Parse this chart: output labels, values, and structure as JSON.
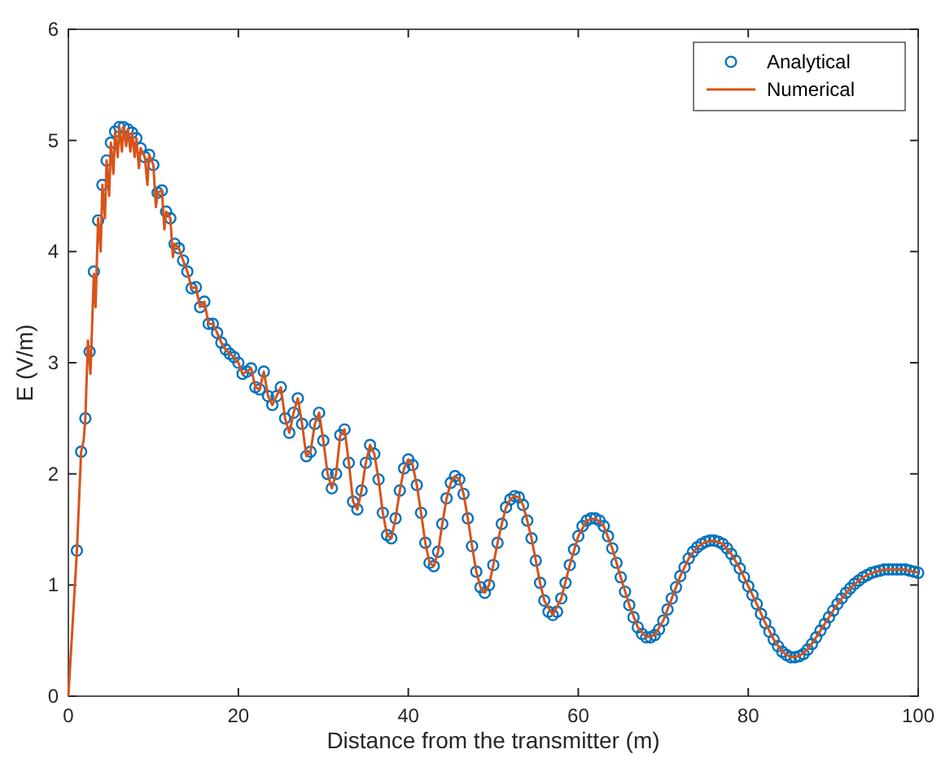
{
  "chart_data": {
    "type": "line",
    "xlabel": "Distance from the transmitter (m)",
    "ylabel": "E (V/m)",
    "xlim": [
      0,
      100
    ],
    "xticks": [
      0,
      20,
      40,
      60,
      80,
      100
    ],
    "ylim": [
      0,
      6
    ],
    "yticks": [
      0,
      1,
      2,
      3,
      4,
      5,
      6
    ],
    "legend": "top right",
    "series": [
      {
        "name": "Analytical",
        "type": "scatter",
        "marker": "circle",
        "color": "#0072bd",
        "x": [
          1,
          1.5,
          2,
          2.5,
          3,
          3.5,
          4,
          4.5,
          5,
          5.5,
          6,
          6.5,
          7,
          7.5,
          8,
          8.5,
          9,
          9.5,
          10,
          10.5,
          11,
          11.5,
          12,
          12.5,
          13,
          13.5,
          14,
          14.5,
          15,
          15.5,
          16,
          16.5,
          17,
          17.5,
          18,
          18.5,
          19,
          19.5,
          20,
          20.5,
          21,
          21.5,
          22,
          22.5,
          23,
          23.5,
          24,
          24.5,
          25,
          25.5,
          26,
          26.5,
          27,
          27.5,
          28,
          28.5,
          29,
          29.5,
          30,
          30.5,
          31,
          31.5,
          32,
          32.5,
          33,
          33.5,
          34,
          34.5,
          35,
          35.5,
          36,
          36.5,
          37,
          37.5,
          38,
          38.5,
          39,
          39.5,
          40,
          40.5,
          41,
          41.5,
          42,
          42.5,
          43,
          43.5,
          44,
          44.5,
          45,
          45.5,
          46,
          46.5,
          47,
          47.5,
          48,
          48.5,
          49,
          49.5,
          50,
          50.5,
          51,
          51.5,
          52,
          52.5,
          53,
          53.5,
          54,
          54.5,
          55,
          55.5,
          56,
          56.5,
          57,
          57.5,
          58,
          58.5,
          59,
          59.5,
          60,
          60.5,
          61,
          61.5,
          62,
          62.5,
          63,
          63.5,
          64,
          64.5,
          65,
          65.5,
          66,
          66.5,
          67,
          67.5,
          68,
          68.5,
          69,
          69.5,
          70,
          70.5,
          71,
          71.5,
          72,
          72.5,
          73,
          73.5,
          74,
          74.5,
          75,
          75.5,
          76,
          76.5,
          77,
          77.5,
          78,
          78.5,
          79,
          79.5,
          80,
          80.5,
          81,
          81.5,
          82,
          82.5,
          83,
          83.5,
          84,
          84.5,
          85,
          85.5,
          86,
          86.5,
          87,
          87.5,
          88,
          88.5,
          89,
          89.5,
          90,
          90.5,
          91,
          91.5,
          92,
          92.5,
          93,
          93.5,
          94,
          94.5,
          95,
          95.5,
          96,
          96.5,
          97,
          97.5,
          98,
          98.5,
          99,
          99.5,
          100
        ],
        "values": [
          1.31,
          2.2,
          2.5,
          3.1,
          3.82,
          4.28,
          4.6,
          4.82,
          4.98,
          5.08,
          5.12,
          5.12,
          5.1,
          5.07,
          5.02,
          4.93,
          4.85,
          4.87,
          4.78,
          4.53,
          4.55,
          4.36,
          4.3,
          4.07,
          4.03,
          3.92,
          3.82,
          3.67,
          3.68,
          3.5,
          3.55,
          3.35,
          3.35,
          3.27,
          3.18,
          3.12,
          3.08,
          3.05,
          3.0,
          2.9,
          2.92,
          2.95,
          2.78,
          2.76,
          2.92,
          2.7,
          2.62,
          2.7,
          2.78,
          2.5,
          2.37,
          2.55,
          2.68,
          2.45,
          2.16,
          2.2,
          2.45,
          2.55,
          2.3,
          2.0,
          1.87,
          2.0,
          2.35,
          2.4,
          2.1,
          1.75,
          1.68,
          1.85,
          2.1,
          2.26,
          2.18,
          1.95,
          1.65,
          1.45,
          1.42,
          1.6,
          1.85,
          2.05,
          2.13,
          2.08,
          1.9,
          1.65,
          1.38,
          1.2,
          1.17,
          1.3,
          1.55,
          1.78,
          1.92,
          1.98,
          1.95,
          1.82,
          1.6,
          1.35,
          1.12,
          0.98,
          0.93,
          1.0,
          1.18,
          1.38,
          1.55,
          1.7,
          1.77,
          1.8,
          1.79,
          1.72,
          1.58,
          1.42,
          1.22,
          1.02,
          0.86,
          0.76,
          0.73,
          0.76,
          0.88,
          1.02,
          1.18,
          1.32,
          1.44,
          1.53,
          1.58,
          1.6,
          1.6,
          1.58,
          1.53,
          1.44,
          1.33,
          1.2,
          1.07,
          0.94,
          0.82,
          0.71,
          0.62,
          0.56,
          0.53,
          0.53,
          0.55,
          0.6,
          0.68,
          0.78,
          0.88,
          0.98,
          1.08,
          1.16,
          1.24,
          1.3,
          1.34,
          1.37,
          1.39,
          1.4,
          1.4,
          1.39,
          1.37,
          1.33,
          1.28,
          1.22,
          1.15,
          1.07,
          0.99,
          0.91,
          0.83,
          0.74,
          0.66,
          0.58,
          0.51,
          0.45,
          0.4,
          0.37,
          0.35,
          0.35,
          0.36,
          0.38,
          0.42,
          0.47,
          0.53,
          0.59,
          0.65,
          0.71,
          0.77,
          0.83,
          0.88,
          0.93,
          0.97,
          1.01,
          1.04,
          1.07,
          1.09,
          1.11,
          1.12,
          1.13,
          1.14,
          1.14,
          1.14,
          1.14,
          1.14,
          1.14,
          1.13,
          1.12,
          1.11
        ]
      },
      {
        "name": "Numerical",
        "color": "#d95319",
        "x": [
          0,
          1,
          1.5,
          1.8,
          2,
          2.3,
          2.6,
          3,
          3.2,
          3.5,
          3.8,
          4,
          4.3,
          4.5,
          4.8,
          5,
          5.3,
          5.5,
          5.8,
          6,
          6.3,
          6.5,
          6.8,
          7,
          7.3,
          7.5,
          7.8,
          8,
          8.3,
          8.5,
          9,
          9.3,
          9.5,
          10,
          10.3,
          10.5,
          11,
          11.3,
          11.5,
          12,
          12.3,
          12.5,
          13,
          13.5,
          14,
          14.5,
          15,
          15.5,
          16,
          16.5,
          17,
          17.5,
          18,
          18.5,
          19,
          19.5,
          20,
          20.5,
          21,
          21.5,
          22,
          22.5,
          23,
          23.5,
          24,
          24.5,
          25,
          25.5,
          26,
          26.5,
          27,
          27.5,
          28,
          28.5,
          29,
          29.5,
          30,
          30.5,
          31,
          31.5,
          32,
          32.5,
          33,
          33.5,
          34,
          34.5,
          35,
          35.5,
          36,
          36.5,
          37,
          37.5,
          38,
          38.5,
          39,
          39.5,
          40,
          40.5,
          41,
          41.5,
          42,
          42.5,
          43,
          43.5,
          44,
          44.5,
          45,
          45.5,
          46,
          46.5,
          47,
          47.5,
          48,
          48.5,
          49,
          49.5,
          50,
          50.5,
          51,
          51.5,
          52,
          52.5,
          53,
          53.5,
          54,
          54.5,
          55,
          55.5,
          56,
          57,
          58,
          59,
          60,
          61,
          62,
          63,
          64,
          65,
          66,
          67,
          68,
          69,
          70,
          71,
          72,
          73,
          74,
          75,
          76,
          77,
          78,
          79,
          80,
          81,
          82,
          83,
          84,
          85,
          86,
          87,
          88,
          89,
          90,
          91,
          92,
          93,
          94,
          95,
          96,
          97,
          98,
          99,
          100
        ],
        "values": [
          0,
          1.3,
          2.2,
          2.3,
          2.5,
          3.2,
          2.9,
          3.8,
          3.5,
          4.3,
          4.0,
          4.6,
          4.3,
          4.82,
          4.5,
          4.98,
          4.7,
          5.08,
          4.85,
          5.12,
          4.9,
          5.12,
          4.95,
          5.1,
          4.9,
          5.07,
          4.85,
          5.02,
          4.75,
          4.93,
          4.85,
          4.6,
          4.87,
          4.78,
          4.4,
          4.53,
          4.55,
          4.2,
          4.36,
          4.3,
          3.95,
          4.07,
          4.03,
          3.92,
          3.82,
          3.67,
          3.68,
          3.5,
          3.55,
          3.35,
          3.35,
          3.27,
          3.18,
          3.12,
          3.08,
          3.05,
          3.0,
          2.9,
          2.92,
          2.95,
          2.78,
          2.76,
          2.92,
          2.7,
          2.62,
          2.7,
          2.78,
          2.5,
          2.37,
          2.55,
          2.68,
          2.45,
          2.16,
          2.2,
          2.45,
          2.55,
          2.3,
          2.0,
          1.87,
          2.0,
          2.35,
          2.4,
          2.1,
          1.75,
          1.68,
          1.85,
          2.1,
          2.26,
          2.18,
          1.95,
          1.65,
          1.45,
          1.42,
          1.6,
          1.85,
          2.05,
          2.13,
          2.08,
          1.9,
          1.65,
          1.38,
          1.2,
          1.17,
          1.3,
          1.55,
          1.78,
          1.92,
          1.98,
          1.95,
          1.82,
          1.6,
          1.35,
          1.12,
          0.98,
          0.93,
          1.0,
          1.18,
          1.38,
          1.55,
          1.7,
          1.77,
          1.8,
          1.79,
          1.72,
          1.58,
          1.42,
          1.22,
          1.02,
          0.86,
          0.73,
          0.88,
          1.18,
          1.44,
          1.58,
          1.6,
          1.53,
          1.33,
          1.07,
          0.82,
          0.62,
          0.53,
          0.55,
          0.68,
          0.88,
          1.08,
          1.24,
          1.34,
          1.39,
          1.4,
          1.37,
          1.28,
          1.15,
          0.99,
          0.83,
          0.66,
          0.51,
          0.4,
          0.35,
          0.36,
          0.42,
          0.53,
          0.65,
          0.77,
          0.88,
          0.97,
          1.04,
          1.09,
          1.12,
          1.14,
          1.14,
          1.14,
          1.13,
          1.11
        ]
      }
    ]
  }
}
